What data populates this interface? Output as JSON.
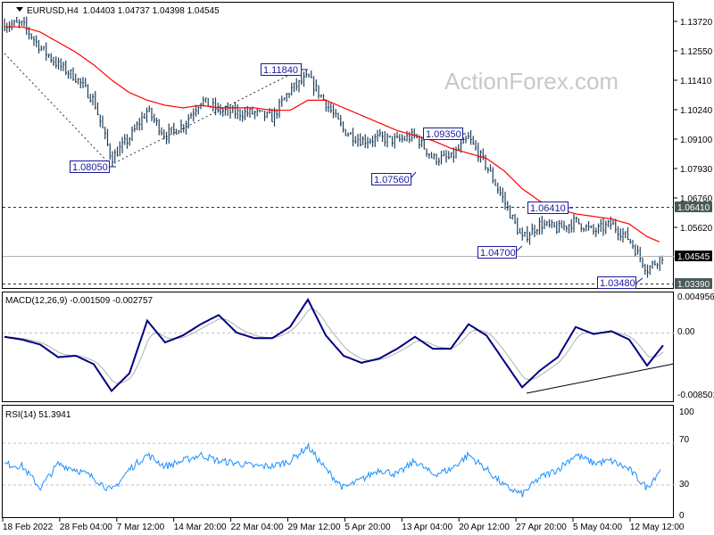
{
  "header": {
    "symbol": "EURUSD,H4",
    "ohlc": "1.04403 1.04737 1.04398 1.04545"
  },
  "watermark": "ActionForex.com",
  "colors": {
    "bars": "#1f3f5a",
    "ma": "#ff0000",
    "macd": "#000080",
    "signal": "#b0b0b0",
    "rsi": "#1e90ff",
    "panel_border": "#000000"
  },
  "price_axis": {
    "ticks": [
      "1.13720",
      "1.12550",
      "1.11410",
      "1.10240",
      "1.09100",
      "1.07930",
      "1.06760",
      "1.05620"
    ],
    "current": "1.04545",
    "level_high": "1.06410",
    "level_low": "1.03390"
  },
  "annotations": [
    "1.08050",
    "1.11840",
    "1.09350",
    "1.07560",
    "1.06410",
    "1.04700",
    "1.03480"
  ],
  "macd": {
    "title": "MACD(12,26,9) -0.001509 -0.002757",
    "ticks": [
      "0.004956",
      "0.00",
      "-0.008501"
    ]
  },
  "rsi": {
    "title": "RSI(14) 51.3941",
    "ticks": [
      "100",
      "70",
      "30",
      "0"
    ]
  },
  "time_axis": [
    "18 Feb 2022",
    "28 Feb 04:00",
    "7 Mar 12:00",
    "14 Mar 20:00",
    "22 Mar 04:00",
    "29 Mar 12:00",
    "5 Apr 20:00",
    "13 Apr 04:00",
    "20 Apr 12:00",
    "27 Apr 20:00",
    "5 May 04:00",
    "12 May 12:00"
  ],
  "chart_data": {
    "type": "ohlc",
    "symbol": "EURUSD",
    "timeframe": "H4",
    "ylim": [
      1.033,
      1.142
    ],
    "price_path": [
      1.136,
      1.136,
      1.127,
      1.12,
      1.115,
      1.106,
      1.083,
      1.091,
      1.102,
      1.092,
      1.096,
      1.106,
      1.102,
      1.101,
      1.101,
      1.099,
      1.11,
      1.115,
      1.105,
      1.094,
      1.09,
      1.091,
      1.09,
      1.092,
      1.083,
      1.083,
      1.091,
      1.08,
      1.066,
      1.051,
      1.057,
      1.055,
      1.058,
      1.054,
      1.057,
      1.051,
      1.039,
      1.04545
    ],
    "moving_average": [
      1.135,
      1.135,
      1.133,
      1.129,
      1.125,
      1.12,
      1.114,
      1.109,
      1.106,
      1.104,
      1.103,
      1.104,
      1.103,
      1.103,
      1.103,
      1.102,
      1.102,
      1.106,
      1.106,
      1.103,
      1.1,
      1.097,
      1.094,
      1.092,
      1.09,
      1.087,
      1.085,
      1.083,
      1.078,
      1.071,
      1.066,
      1.063,
      1.061,
      1.06,
      1.059,
      1.057,
      1.052,
      1.049
    ],
    "macd_values": [
      -0.0006,
      -0.001,
      -0.0017,
      -0.0035,
      -0.0033,
      -0.0045,
      -0.0083,
      -0.0058,
      0.0017,
      -0.0014,
      -0.0004,
      0.0012,
      0.0025,
      0,
      -0.0008,
      -0.0008,
      0.0008,
      0.0047,
      -0.0004,
      -0.0033,
      -0.0043,
      -0.0037,
      -0.0023,
      -0.0006,
      -0.0023,
      -0.0023,
      0.0012,
      -0.0004,
      -0.0041,
      -0.0078,
      -0.0054,
      -0.0035,
      0.0008,
      -0.0002,
      0.0002,
      -0.001,
      -0.0047,
      -0.0015
    ],
    "macd_ylim": [
      -0.008501,
      0.004956
    ],
    "rsi_values": [
      50,
      48,
      27,
      50,
      45,
      37,
      24,
      45,
      59,
      48,
      53,
      59,
      53,
      51,
      48,
      48,
      53,
      67,
      45,
      27,
      35,
      45,
      40,
      53,
      40,
      45,
      59,
      45,
      29,
      21,
      37,
      45,
      59,
      51,
      53,
      45,
      27,
      51.4
    ],
    "rsi_levels": [
      30,
      70
    ]
  }
}
